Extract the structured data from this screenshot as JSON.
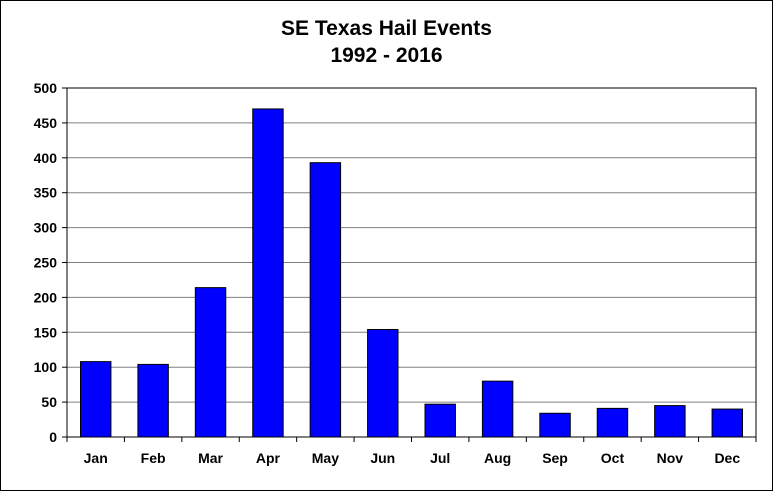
{
  "chart_data": {
    "type": "bar",
    "title": "SE Texas Hail Events",
    "subtitle": "1992 - 2016",
    "xlabel": "",
    "ylabel": "",
    "categories": [
      "Jan",
      "Feb",
      "Mar",
      "Apr",
      "May",
      "Jun",
      "Jul",
      "Aug",
      "Sep",
      "Oct",
      "Nov",
      "Dec"
    ],
    "values": [
      108,
      104,
      214,
      470,
      393,
      154,
      47,
      80,
      34,
      41,
      45,
      40
    ],
    "ylim": [
      0,
      500
    ],
    "yticks": [
      0,
      50,
      100,
      150,
      200,
      250,
      300,
      350,
      400,
      450,
      500
    ],
    "grid": true,
    "legend": "none",
    "bar_color": "#0000ff",
    "bar_border_color": "#000000",
    "grid_color": "#808080"
  }
}
